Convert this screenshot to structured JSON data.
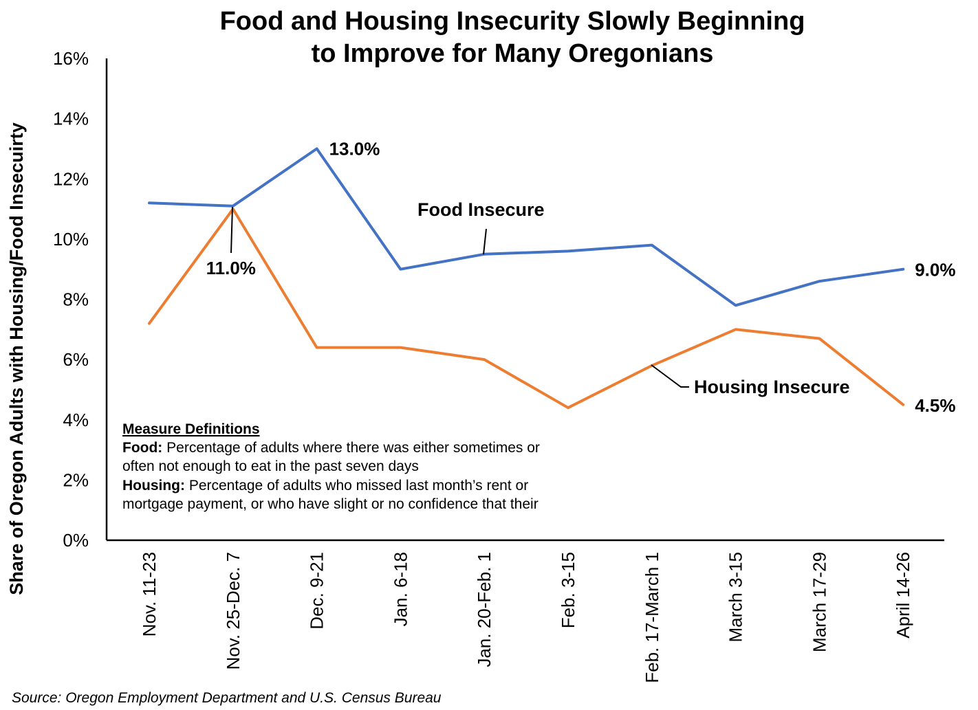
{
  "chart_data": {
    "type": "line",
    "title_lines": [
      "Food and Housing Insecurity Slowly Beginning",
      "to Improve for Many Oregonians"
    ],
    "ylabel": "Share of Oregon Adults with Housing/Food Insecuirty",
    "xlabel": "",
    "categories": [
      "Nov. 11-23",
      "Nov. 25-Dec. 7",
      "Dec. 9-21",
      "Jan. 6-18",
      "Jan. 20-Feb. 1",
      "Feb. 3-15",
      "Feb. 17-March 1",
      "March 3-15",
      "March 17-29",
      "April 14-26"
    ],
    "ylim": [
      0,
      16
    ],
    "yticks": [
      0,
      2,
      4,
      6,
      8,
      10,
      12,
      14,
      16
    ],
    "ytick_labels": [
      "0%",
      "2%",
      "4%",
      "6%",
      "8%",
      "10%",
      "12%",
      "14%",
      "16%"
    ],
    "grid": false,
    "series": [
      {
        "name": "Food Insecure",
        "color": "#4472C4",
        "values": [
          11.2,
          11.1,
          13.0,
          9.0,
          9.5,
          9.6,
          9.8,
          7.8,
          8.6,
          9.0
        ]
      },
      {
        "name": "Housing Insecure",
        "color": "#ED7D31",
        "values": [
          7.2,
          11.0,
          6.4,
          6.4,
          6.0,
          4.4,
          5.8,
          7.0,
          6.7,
          4.5
        ]
      }
    ],
    "annotations": [
      {
        "text": "13.0%",
        "series": 0,
        "index": 2
      },
      {
        "text": "11.0%",
        "series": 1,
        "index": 1
      },
      {
        "text": "9.0%",
        "series": 0,
        "index": 9
      },
      {
        "text": "4.5%",
        "series": 1,
        "index": 9
      }
    ]
  },
  "definitions": {
    "title": "Measure Definitions",
    "food_label": "Food:",
    "food_line1": " Percentage of adults where there was either sometimes or",
    "food_line2": "often not enough to eat in the past seven days",
    "housing_label": "Housing:",
    "housing_line1": " Percentage of adults who missed last month’s rent or",
    "housing_line2": "mortgage payment, or who have slight or no confidence that their"
  },
  "source": "Source: Oregon Employment Department and U.S. Census Bureau"
}
